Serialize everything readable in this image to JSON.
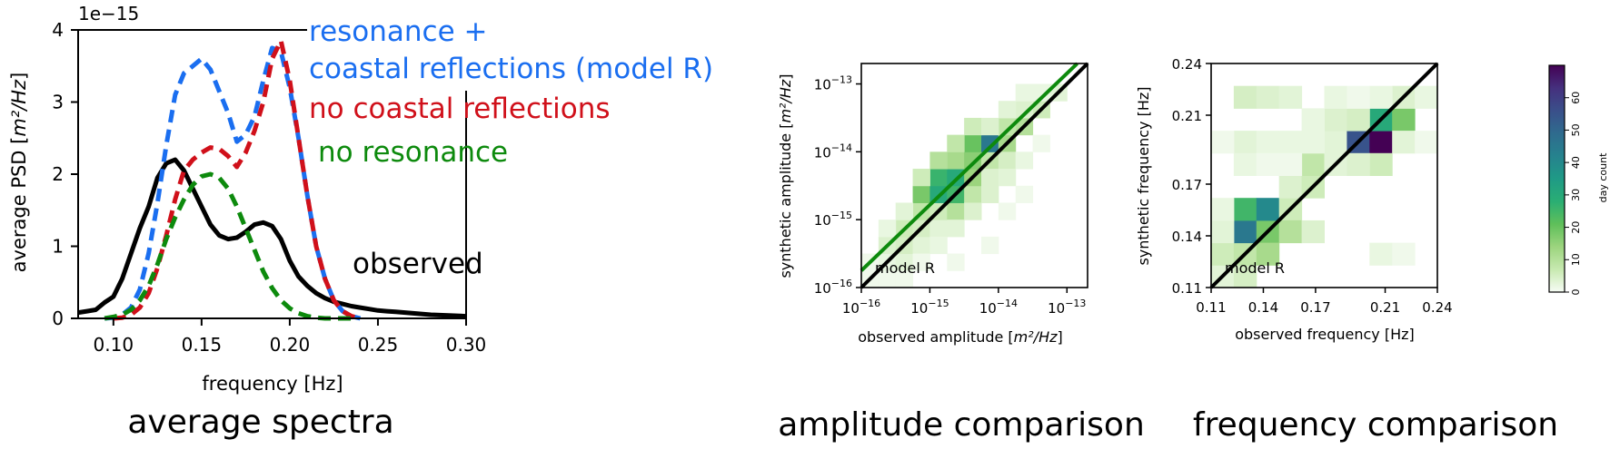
{
  "chart_data": [
    {
      "type": "line",
      "title": "average spectra",
      "xlabel": "frequency [Hz]",
      "ylabel_prefix": "average PSD [",
      "ylabel_unit": "m²/Hz",
      "ylabel_suffix": "]",
      "offset_text": "1e−15",
      "xlim": [
        0.08,
        0.3
      ],
      "ylim": [
        0,
        4
      ],
      "x_ticks": [
        0.1,
        0.15,
        0.2,
        0.25,
        0.3
      ],
      "x_tick_labels": [
        "0.10",
        "0.15",
        "0.20",
        "0.25",
        "0.30"
      ],
      "y_ticks": [
        0,
        1,
        2,
        3,
        4
      ],
      "y_tick_labels": [
        "0",
        "1",
        "2",
        "3",
        "4"
      ],
      "series": [
        {
          "name": "observed",
          "color": "#000000",
          "dashed": false,
          "x": [
            0.08,
            0.085,
            0.09,
            0.095,
            0.1,
            0.105,
            0.11,
            0.115,
            0.12,
            0.125,
            0.13,
            0.135,
            0.14,
            0.145,
            0.15,
            0.155,
            0.16,
            0.165,
            0.17,
            0.175,
            0.18,
            0.185,
            0.19,
            0.195,
            0.2,
            0.205,
            0.21,
            0.215,
            0.22,
            0.225,
            0.23,
            0.235,
            0.24,
            0.245,
            0.25,
            0.255,
            0.26,
            0.27,
            0.28,
            0.29,
            0.3
          ],
          "y": [
            0.08,
            0.1,
            0.12,
            0.22,
            0.3,
            0.55,
            0.9,
            1.25,
            1.55,
            1.95,
            2.15,
            2.2,
            2.05,
            1.8,
            1.55,
            1.3,
            1.15,
            1.1,
            1.12,
            1.2,
            1.3,
            1.33,
            1.28,
            1.1,
            0.8,
            0.58,
            0.45,
            0.35,
            0.28,
            0.23,
            0.2,
            0.17,
            0.15,
            0.13,
            0.11,
            0.1,
            0.09,
            0.07,
            0.05,
            0.04,
            0.03
          ]
        },
        {
          "name": "resonance + coastal reflections (model R)",
          "color": "#1a6ef0",
          "dashed": true,
          "x": [
            0.095,
            0.1,
            0.105,
            0.11,
            0.115,
            0.12,
            0.125,
            0.13,
            0.135,
            0.14,
            0.145,
            0.15,
            0.155,
            0.16,
            0.165,
            0.17,
            0.175,
            0.18,
            0.185,
            0.19,
            0.195,
            0.2,
            0.205,
            0.21,
            0.215,
            0.22,
            0.225,
            0.23,
            0.235,
            0.24
          ],
          "y": [
            0.0,
            0.01,
            0.05,
            0.15,
            0.4,
            0.9,
            1.6,
            2.4,
            3.1,
            3.4,
            3.5,
            3.6,
            3.45,
            3.15,
            2.85,
            2.45,
            2.55,
            2.8,
            3.3,
            3.75,
            3.7,
            3.2,
            2.5,
            1.7,
            1.0,
            0.55,
            0.25,
            0.1,
            0.03,
            0.0
          ]
        },
        {
          "name": "no coastal reflections",
          "color": "#d0101a",
          "dashed": true,
          "x": [
            0.1,
            0.105,
            0.11,
            0.115,
            0.12,
            0.125,
            0.13,
            0.135,
            0.14,
            0.145,
            0.15,
            0.155,
            0.16,
            0.165,
            0.17,
            0.175,
            0.18,
            0.185,
            0.19,
            0.195,
            0.2,
            0.205,
            0.21,
            0.215,
            0.22,
            0.225,
            0.23,
            0.235,
            0.24
          ],
          "y": [
            0.0,
            0.01,
            0.05,
            0.15,
            0.35,
            0.7,
            1.15,
            1.65,
            2.05,
            2.2,
            2.3,
            2.37,
            2.35,
            2.25,
            2.1,
            2.3,
            2.6,
            3.0,
            3.6,
            3.85,
            3.3,
            2.5,
            1.7,
            1.0,
            0.55,
            0.25,
            0.1,
            0.03,
            0.0
          ]
        },
        {
          "name": "no resonance",
          "color": "#0d8a0d",
          "dashed": true,
          "x": [
            0.095,
            0.1,
            0.105,
            0.11,
            0.115,
            0.12,
            0.125,
            0.13,
            0.135,
            0.14,
            0.145,
            0.15,
            0.155,
            0.16,
            0.165,
            0.17,
            0.175,
            0.18,
            0.185,
            0.19,
            0.195,
            0.2,
            0.205,
            0.21,
            0.215,
            0.22,
            0.225,
            0.23,
            0.235
          ],
          "y": [
            0.0,
            0.02,
            0.05,
            0.12,
            0.25,
            0.45,
            0.75,
            1.1,
            1.4,
            1.65,
            1.85,
            1.97,
            2.0,
            1.95,
            1.8,
            1.55,
            1.25,
            0.95,
            0.65,
            0.42,
            0.25,
            0.14,
            0.07,
            0.03,
            0.01,
            0.0,
            0.0,
            0.0,
            0.0
          ]
        }
      ]
    },
    {
      "type": "heatmap",
      "title": "amplitude comparison",
      "xlabel_prefix": "observed amplitude [",
      "xlabel_unit": "m²/Hz",
      "xlabel_suffix": "]",
      "ylabel_prefix": "synthetic amplitude [",
      "ylabel_unit": "m²/Hz",
      "ylabel_suffix": "]",
      "scale": "log",
      "xlim": [
        1e-16,
        2e-13
      ],
      "ylim": [
        1e-16,
        2e-13
      ],
      "ticks": [
        1e-16,
        1e-15,
        1e-14,
        1e-13
      ],
      "tick_labels": [
        [
          "10",
          "−16"
        ],
        [
          "10",
          "−15"
        ],
        [
          "10",
          "−14"
        ],
        [
          "10",
          "−13"
        ]
      ],
      "annotation": "model R",
      "grid": {
        "x_edges_log10": [
          -16,
          -15.75,
          -15.5,
          -15.25,
          -15,
          -14.75,
          -14.5,
          -14.25,
          -14,
          -13.75,
          -13.5,
          -13.25,
          -13
        ],
        "y_edges_log10": [
          -16,
          -15.75,
          -15.5,
          -15.25,
          -15,
          -14.75,
          -14.5,
          -14.25,
          -14,
          -13.75,
          -13.5,
          -13.25,
          -13
        ]
      },
      "cells": [
        [
          0,
          0,
          1
        ],
        [
          0,
          1,
          1
        ],
        [
          1,
          0,
          1
        ],
        [
          1,
          1,
          2
        ],
        [
          2,
          1,
          3
        ],
        [
          1,
          2,
          4
        ],
        [
          2,
          2,
          5
        ],
        [
          2,
          3,
          6
        ],
        [
          3,
          2,
          3
        ],
        [
          3,
          3,
          5
        ],
        [
          3,
          4,
          8
        ],
        [
          4,
          3,
          3
        ],
        [
          4,
          4,
          6
        ],
        [
          3,
          5,
          18
        ],
        [
          4,
          5,
          30
        ],
        [
          4,
          6,
          26
        ],
        [
          5,
          4,
          10
        ],
        [
          5,
          5,
          25
        ],
        [
          5,
          6,
          30
        ],
        [
          6,
          5,
          8
        ],
        [
          6,
          6,
          14
        ],
        [
          5,
          7,
          12
        ],
        [
          6,
          7,
          16
        ],
        [
          6,
          8,
          20
        ],
        [
          7,
          7,
          8
        ],
        [
          7,
          8,
          45
        ],
        [
          8,
          8,
          12
        ],
        [
          8,
          7,
          5
        ],
        [
          7,
          6,
          4
        ],
        [
          9,
          9,
          10
        ],
        [
          8,
          9,
          8
        ],
        [
          10,
          10,
          6
        ],
        [
          9,
          10,
          4
        ],
        [
          11,
          11,
          3
        ],
        [
          10,
          11,
          2
        ],
        [
          2,
          4,
          3
        ],
        [
          1,
          3,
          2
        ],
        [
          3,
          6,
          6
        ],
        [
          4,
          7,
          10
        ],
        [
          5,
          8,
          8
        ],
        [
          6,
          9,
          6
        ],
        [
          7,
          9,
          4
        ],
        [
          8,
          10,
          3
        ],
        [
          9,
          11,
          2
        ],
        [
          2,
          0,
          1
        ],
        [
          3,
          1,
          1
        ],
        [
          4,
          2,
          2
        ],
        [
          5,
          3,
          3
        ],
        [
          6,
          4,
          4
        ],
        [
          7,
          5,
          4
        ],
        [
          8,
          6,
          3
        ],
        [
          9,
          7,
          2
        ],
        [
          10,
          8,
          1
        ],
        [
          5,
          1,
          1
        ],
        [
          7,
          2,
          1
        ],
        [
          8,
          4,
          1
        ],
        [
          9,
          5,
          1
        ]
      ],
      "lines": [
        {
          "name": "1:1",
          "color": "#000000",
          "from": [
            -16,
            -16
          ],
          "to": [
            -12.7,
            -12.7
          ]
        },
        {
          "name": "fit",
          "color": "#0d8a0d",
          "from": [
            -16,
            -15.75
          ],
          "to": [
            -12.85,
            -12.7
          ]
        }
      ]
    },
    {
      "type": "heatmap",
      "title": "frequency comparison",
      "xlabel": "observed frequency [Hz]",
      "ylabel": "synthetic frequency [Hz]",
      "xlim": [
        0.11,
        0.24
      ],
      "ylim": [
        0.11,
        0.24
      ],
      "tick_values": [
        0.11,
        0.14,
        0.17,
        0.21,
        0.24
      ],
      "tick_labels": [
        "0.11",
        "0.14",
        "0.17",
        "0.21",
        "0.24"
      ],
      "annotation": "model R",
      "grid": {
        "x_edges": [
          0.11,
          0.123,
          0.136,
          0.149,
          0.162,
          0.175,
          0.188,
          0.201,
          0.214,
          0.227,
          0.24
        ],
        "y_edges": [
          0.11,
          0.123,
          0.136,
          0.149,
          0.162,
          0.175,
          0.188,
          0.201,
          0.214,
          0.227,
          0.24
        ]
      },
      "cells": [
        [
          0,
          0,
          3
        ],
        [
          0,
          1,
          6
        ],
        [
          1,
          0,
          5
        ],
        [
          1,
          1,
          8
        ],
        [
          1,
          2,
          45
        ],
        [
          2,
          2,
          18
        ],
        [
          1,
          3,
          25
        ],
        [
          2,
          3,
          40
        ],
        [
          3,
          3,
          6
        ],
        [
          2,
          1,
          12
        ],
        [
          3,
          2,
          10
        ],
        [
          4,
          2,
          4
        ],
        [
          0,
          2,
          3
        ],
        [
          0,
          3,
          2
        ],
        [
          3,
          4,
          4
        ],
        [
          4,
          4,
          6
        ],
        [
          4,
          5,
          8
        ],
        [
          5,
          5,
          3
        ],
        [
          5,
          6,
          3
        ],
        [
          5,
          7,
          4
        ],
        [
          6,
          6,
          55
        ],
        [
          7,
          6,
          70
        ],
        [
          7,
          7,
          30
        ],
        [
          8,
          7,
          18
        ],
        [
          7,
          5,
          6
        ],
        [
          6,
          5,
          4
        ],
        [
          6,
          7,
          5
        ],
        [
          8,
          8,
          4
        ],
        [
          8,
          6,
          3
        ],
        [
          1,
          8,
          5
        ],
        [
          2,
          8,
          4
        ],
        [
          3,
          8,
          3
        ],
        [
          1,
          6,
          3
        ],
        [
          2,
          6,
          2
        ],
        [
          3,
          6,
          2
        ],
        [
          4,
          6,
          2
        ],
        [
          1,
          5,
          2
        ],
        [
          2,
          5,
          1
        ],
        [
          3,
          5,
          1
        ],
        [
          4,
          7,
          2
        ],
        [
          5,
          8,
          2
        ],
        [
          7,
          8,
          2
        ],
        [
          9,
          8,
          2
        ],
        [
          6,
          8,
          1
        ],
        [
          7,
          1,
          2
        ],
        [
          8,
          1,
          1
        ],
        [
          9,
          6,
          1
        ],
        [
          0,
          6,
          1
        ]
      ],
      "lines": [
        {
          "name": "1:1",
          "color": "#000000",
          "from": [
            0.11,
            0.11
          ],
          "to": [
            0.24,
            0.24
          ]
        }
      ]
    },
    {
      "type": "colorbar",
      "label": "day count",
      "range": [
        0,
        70
      ],
      "ticks": [
        0,
        10,
        20,
        30,
        40,
        50,
        60
      ],
      "tick_labels": [
        "0",
        "10",
        "20",
        "30",
        "40",
        "50",
        "60"
      ],
      "colormap": [
        "#f7fcf5",
        "#c7e9b0",
        "#9cd47e",
        "#5fbf5a",
        "#2aae74",
        "#1f9a86",
        "#26828e",
        "#2f6b8e",
        "#3a4f8a",
        "#45307e",
        "#440154"
      ]
    }
  ]
}
